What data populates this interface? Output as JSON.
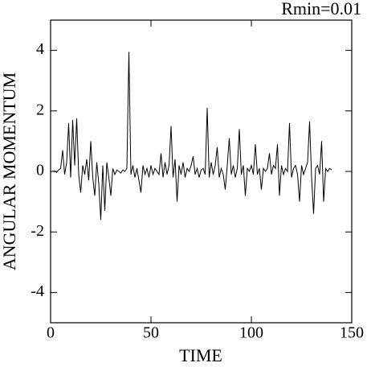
{
  "chart_data": {
    "type": "line",
    "title": "Rmin=0.01",
    "xlabel": "TIME",
    "ylabel": "ANGULAR MOMENTUM",
    "xlim": [
      0,
      150
    ],
    "ylim": [
      -5,
      5
    ],
    "xticks": [
      0,
      50,
      100,
      150
    ],
    "yticks": [
      -4,
      -2,
      0,
      2,
      4
    ],
    "x": [
      0,
      1,
      2,
      3,
      4,
      5,
      6,
      7,
      8,
      9,
      10,
      11,
      12,
      13,
      14,
      15,
      16,
      17,
      18,
      19,
      20,
      21,
      22,
      23,
      24,
      25,
      26,
      27,
      28,
      29,
      30,
      31,
      32,
      33,
      34,
      35,
      36,
      37,
      38,
      39,
      40,
      41,
      42,
      43,
      44,
      45,
      46,
      47,
      48,
      49,
      50,
      51,
      52,
      53,
      54,
      55,
      56,
      57,
      58,
      59,
      60,
      61,
      62,
      63,
      64,
      65,
      66,
      67,
      68,
      69,
      70,
      71,
      72,
      73,
      74,
      75,
      76,
      77,
      78,
      79,
      80,
      81,
      82,
      83,
      84,
      85,
      86,
      87,
      88,
      89,
      90,
      91,
      92,
      93,
      94,
      95,
      96,
      97,
      98,
      99,
      100,
      101,
      102,
      103,
      104,
      105,
      106,
      107,
      108,
      109,
      110,
      111,
      112,
      113,
      114,
      115,
      116,
      117,
      118,
      119,
      120,
      121,
      122,
      123,
      124,
      125,
      126,
      127,
      128,
      129,
      130,
      131,
      132,
      133,
      134,
      135,
      136,
      137,
      138,
      139,
      140
    ],
    "series": [
      {
        "color": "#000000",
        "values": [
          0,
          0,
          0.02,
          -0.03,
          0.05,
          0.1,
          0.7,
          -0.1,
          0.3,
          1.6,
          -0.2,
          1.7,
          0.2,
          1.75,
          -0.1,
          -0.7,
          0.2,
          -0.1,
          0.4,
          -0.3,
          1.0,
          -0.2,
          -0.8,
          0.3,
          -0.4,
          -1.6,
          0.2,
          -1.3,
          0.3,
          -0.2,
          -0.8,
          0.1,
          -0.1,
          0.05,
          0,
          -0.05,
          0.05,
          0,
          0.1,
          3.95,
          -0.1,
          0.2,
          -0.2,
          0.1,
          -0.3,
          -0.7,
          0.2,
          -0.1,
          0.1,
          -0.2,
          0.2,
          -0.1,
          0.1,
          0,
          -0.1,
          0.6,
          -0.2,
          0.3,
          -0.1,
          0.2,
          1.5,
          -0.2,
          0.4,
          -1.0,
          0.2,
          -0.1,
          0.3,
          -0.2,
          0.1,
          0,
          0.2,
          0.5,
          -0.1,
          0.1,
          -0.2,
          0.05,
          0.1,
          -0.1,
          2.1,
          -0.2,
          0.3,
          -0.1,
          0.2,
          0.8,
          -0.2,
          0.1,
          -0.1,
          -0.6,
          0.2,
          1.1,
          -0.1,
          0.2,
          -0.2,
          0.1,
          1.4,
          -0.1,
          0.2,
          -0.8,
          0.1,
          0,
          0.2,
          -0.1,
          0.9,
          -0.1,
          0.1,
          -0.6,
          0.1,
          0,
          0.1,
          0.6,
          -0.1,
          0.2,
          0.1,
          0.9,
          -0.8,
          0.2,
          -0.1,
          0.1,
          0,
          1.6,
          -0.2,
          0.1,
          0.2,
          -0.1,
          -1.0,
          0.2,
          -0.1,
          0.1,
          0.3,
          1.65,
          -0.2,
          -1.4,
          0.1,
          0.2,
          -0.1,
          1.0,
          -1.0,
          0.1,
          0,
          0.1,
          0.05
        ]
      }
    ]
  }
}
